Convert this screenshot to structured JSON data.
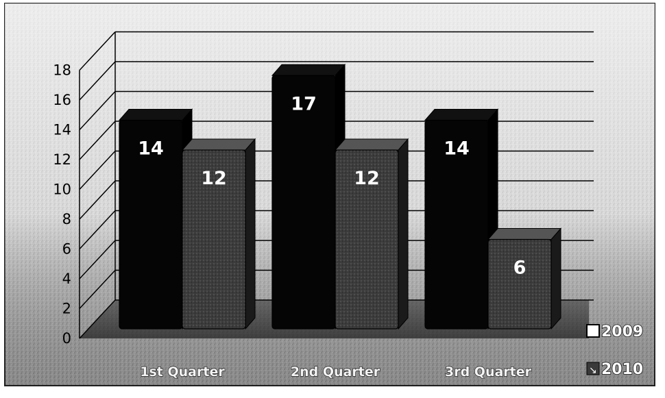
{
  "chart_data": {
    "type": "bar",
    "categories": [
      "1st Quarter",
      "2nd Quarter",
      "3rd Quarter"
    ],
    "series": [
      {
        "name": "2009",
        "values": [
          14,
          17,
          14
        ],
        "color": "#050505"
      },
      {
        "name": "2010",
        "values": [
          12,
          12,
          6
        ],
        "color": "#3a3a3a"
      }
    ],
    "ylim": [
      0,
      18
    ],
    "yticks": [
      "0",
      "2",
      "4",
      "6",
      "8",
      "10",
      "12",
      "14",
      "16",
      "18"
    ],
    "data_labels": true,
    "grid": true,
    "legend_position": "right",
    "style": "3d-clustered-column"
  }
}
